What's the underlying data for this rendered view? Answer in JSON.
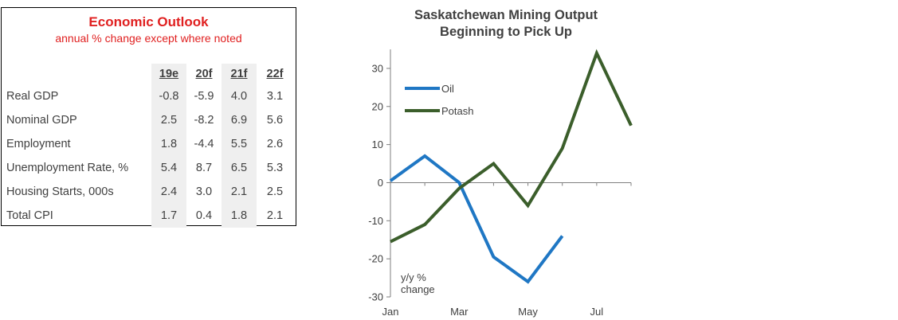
{
  "table": {
    "title": "Economic Outlook",
    "subtitle": "annual % change except where noted",
    "columns": [
      "19e",
      "20f",
      "21f",
      "22f"
    ],
    "rows": [
      {
        "label": "Real GDP",
        "values": [
          "-0.8",
          "-5.9",
          "4.0",
          "3.1"
        ]
      },
      {
        "label": "Nominal GDP",
        "values": [
          "2.5",
          "-8.2",
          "6.9",
          "5.6"
        ]
      },
      {
        "label": "Employment",
        "values": [
          "1.8",
          "-4.4",
          "5.5",
          "2.6"
        ]
      },
      {
        "label": "Unemployment Rate, %",
        "values": [
          "5.4",
          "8.7",
          "6.5",
          "5.3"
        ]
      },
      {
        "label": "Housing Starts, 000s",
        "values": [
          "2.4",
          "3.0",
          "2.1",
          "2.5"
        ]
      },
      {
        "label": "Total CPI",
        "values": [
          "1.7",
          "0.4",
          "1.8",
          "2.1"
        ]
      }
    ]
  },
  "chart_data": {
    "type": "line",
    "title": "Saskatchewan  Mining Output",
    "subtitle": "Beginning to Pick Up",
    "ylabel": "y/y % change",
    "ylabel_lines": [
      "y/y %",
      "change"
    ],
    "xlabel": "",
    "x_ticks": [
      "Jan",
      "Mar",
      "May",
      "Jul"
    ],
    "x": [
      1,
      2,
      3,
      4,
      5,
      6,
      7,
      8
    ],
    "ylim": [
      -30,
      35
    ],
    "y_ticks": [
      30,
      20,
      10,
      0,
      -10,
      -20,
      -30
    ],
    "legend_position": "top-left",
    "series": [
      {
        "name": "Oil",
        "color": "#1f77c4",
        "x": [
          1,
          2,
          3,
          4,
          5,
          6
        ],
        "values": [
          0.5,
          7,
          0,
          -19.5,
          -26,
          -14
        ]
      },
      {
        "name": "Potash",
        "color": "#3b5e2b",
        "x": [
          1,
          2,
          3,
          4,
          5,
          6,
          7,
          8
        ],
        "values": [
          -15.5,
          -11,
          -1.5,
          5,
          -6,
          9,
          34,
          15
        ]
      }
    ]
  }
}
